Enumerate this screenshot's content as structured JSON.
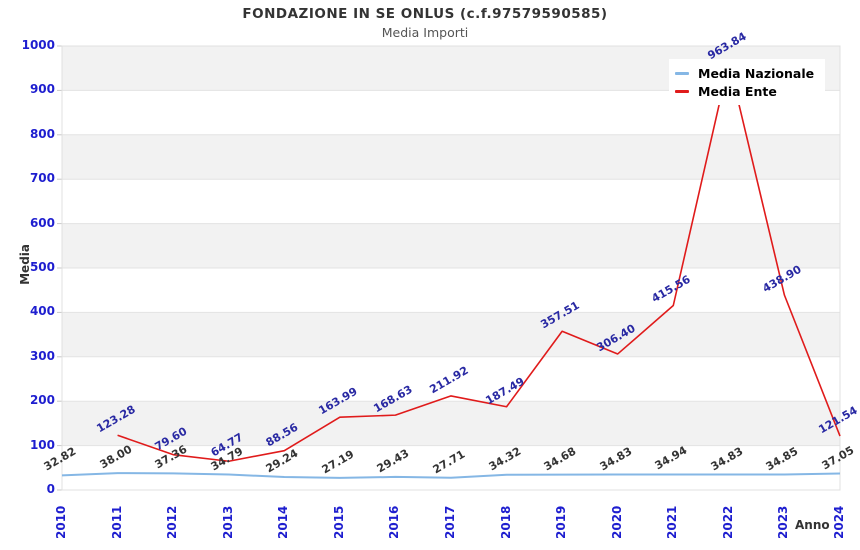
{
  "title": "FONDAZIONE IN SE ONLUS (c.f.97579590585)",
  "subtitle": "Media Importi",
  "axes": {
    "y_label": "Media",
    "x_label": "Anno",
    "y_tick_labels": [
      "0",
      "100",
      "200",
      "300",
      "400",
      "500",
      "600",
      "700",
      "800",
      "900",
      "1000"
    ],
    "x_tick_labels": [
      "2010",
      "2011",
      "2012",
      "2013",
      "2014",
      "2015",
      "2016",
      "2017",
      "2018",
      "2019",
      "2020",
      "2021",
      "2022",
      "2023",
      "2024"
    ]
  },
  "legend": {
    "items": [
      {
        "label": "Media Nazionale",
        "color": "#85b7e5"
      },
      {
        "label": "Media Ente",
        "color": "#e01b1b"
      }
    ]
  },
  "colors": {
    "title": "#333333",
    "subtitle": "#555555",
    "tick_label": "#1e1ecf",
    "band": "#f2f2f2",
    "grid": "#e3e3e3",
    "plot_border": "#e0e0e0",
    "series_nazionale": "#85b7e5",
    "series_ente": "#e01b1b",
    "label_nazionale": "#333333",
    "label_ente": "#2929a3"
  },
  "chart_data": {
    "type": "line",
    "title": "FONDAZIONE IN SE ONLUS (c.f.97579590585)",
    "subtitle": "Media Importi",
    "xlabel": "Anno",
    "ylabel": "Media",
    "categories": [
      "2010",
      "2011",
      "2012",
      "2013",
      "2014",
      "2015",
      "2016",
      "2017",
      "2018",
      "2019",
      "2020",
      "2021",
      "2022",
      "2023",
      "2024"
    ],
    "series": [
      {
        "name": "Media Nazionale",
        "color": "#85b7e5",
        "label_color": "#333333",
        "values": [
          32.82,
          38.0,
          37.36,
          34.79,
          29.24,
          27.19,
          29.43,
          27.71,
          34.32,
          34.68,
          34.83,
          34.94,
          34.83,
          34.85,
          37.05
        ]
      },
      {
        "name": "Media Ente",
        "color": "#e01b1b",
        "label_color": "#2929a3",
        "values": [
          null,
          123.28,
          79.6,
          64.77,
          88.56,
          163.99,
          168.63,
          211.92,
          187.49,
          357.51,
          306.4,
          415.56,
          963.84,
          438.9,
          121.54
        ]
      }
    ],
    "ylim": [
      0,
      1000
    ],
    "ytick_step": 100,
    "grid": true,
    "banded_background": true,
    "legend_position": "top-right",
    "data_labels": true,
    "data_label_rotation_deg": -30
  }
}
